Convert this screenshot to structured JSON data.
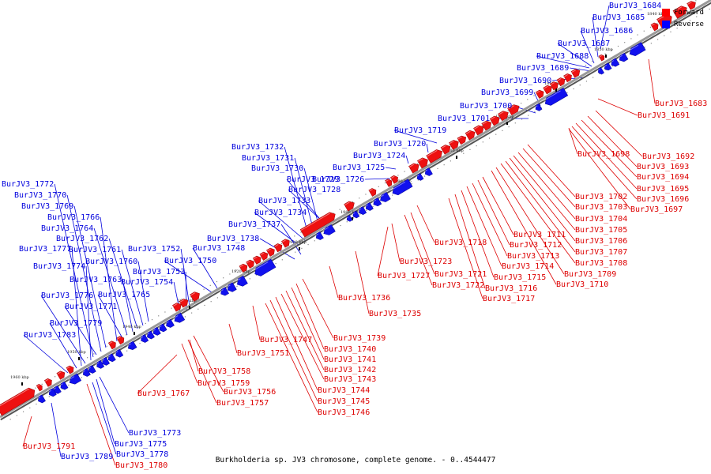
{
  "caption": "Burkholderia sp. JV3 chromosome, complete genome. - 0..4544477",
  "legend": [
    {
      "label": "Forward",
      "color": "#ff0000"
    },
    {
      "label": "Reverse",
      "color": "#0000ff"
    }
  ],
  "colors": {
    "forward": "#ee1111",
    "reverse": "#1111ee",
    "backbone": "#999999"
  },
  "chromosome": {
    "length": 4544477,
    "visible_range_kbp": [
      1835,
      1965
    ],
    "tick_labels": [
      "1840 kbp",
      "1850 kbp",
      "1860 kbp",
      "1870 kbp",
      "1880 kbp",
      "1890 kbp",
      "1900 kbp",
      "1910 kbp",
      "1920 kbp",
      "1930 kbp",
      "1940 kbp",
      "1950 kbp",
      "1960 kbp"
    ]
  },
  "genes": [
    {
      "id": "BurJV3_1683",
      "strand": "+"
    },
    {
      "id": "BurJV3_1684",
      "strand": "-"
    },
    {
      "id": "BurJV3_1685",
      "strand": "-"
    },
    {
      "id": "BurJV3_1686",
      "strand": "-"
    },
    {
      "id": "BurJV3_1687",
      "strand": "-"
    },
    {
      "id": "BurJV3_1688",
      "strand": "-"
    },
    {
      "id": "BurJV3_1689",
      "strand": "-"
    },
    {
      "id": "BurJV3_1690",
      "strand": "-"
    },
    {
      "id": "BurJV3_1691",
      "strand": "+"
    },
    {
      "id": "BurJV3_1692",
      "strand": "+"
    },
    {
      "id": "BurJV3_1693",
      "strand": "+"
    },
    {
      "id": "BurJV3_1694",
      "strand": "+"
    },
    {
      "id": "BurJV3_1695",
      "strand": "+"
    },
    {
      "id": "BurJV3_1696",
      "strand": "+"
    },
    {
      "id": "BurJV3_1697",
      "strand": "+"
    },
    {
      "id": "BurJV3_1698",
      "strand": "+"
    },
    {
      "id": "BurJV3_1699",
      "strand": "-"
    },
    {
      "id": "BurJV3_1700",
      "strand": "-"
    },
    {
      "id": "BurJV3_1701",
      "strand": "-"
    },
    {
      "id": "BurJV3_1702",
      "strand": "+"
    },
    {
      "id": "BurJV3_1703",
      "strand": "+"
    },
    {
      "id": "BurJV3_1704",
      "strand": "+"
    },
    {
      "id": "BurJV3_1705",
      "strand": "+"
    },
    {
      "id": "BurJV3_1706",
      "strand": "+"
    },
    {
      "id": "BurJV3_1707",
      "strand": "+"
    },
    {
      "id": "BurJV3_1708",
      "strand": "+"
    },
    {
      "id": "BurJV3_1709",
      "strand": "+"
    },
    {
      "id": "BurJV3_1710",
      "strand": "+"
    },
    {
      "id": "BurJV3_1711",
      "strand": "+"
    },
    {
      "id": "BurJV3_1712",
      "strand": "+"
    },
    {
      "id": "BurJV3_1713",
      "strand": "+"
    },
    {
      "id": "BurJV3_1714",
      "strand": "+"
    },
    {
      "id": "BurJV3_1715",
      "strand": "+"
    },
    {
      "id": "BurJV3_1716",
      "strand": "+"
    },
    {
      "id": "BurJV3_1717",
      "strand": "+"
    },
    {
      "id": "BurJV3_1718",
      "strand": "+"
    },
    {
      "id": "BurJV3_1719",
      "strand": "-"
    },
    {
      "id": "BurJV3_1720",
      "strand": "-"
    },
    {
      "id": "BurJV3_1721",
      "strand": "+"
    },
    {
      "id": "BurJV3_1722",
      "strand": "+"
    },
    {
      "id": "BurJV3_1723",
      "strand": "+"
    },
    {
      "id": "BurJV3_1724",
      "strand": "-"
    },
    {
      "id": "BurJV3_1725",
      "strand": "-"
    },
    {
      "id": "BurJV3_1726",
      "strand": "-"
    },
    {
      "id": "BurJV3_1727",
      "strand": "+"
    },
    {
      "id": "BurJV3_1728",
      "strand": "-"
    },
    {
      "id": "BurJV3_1729",
      "strand": "-"
    },
    {
      "id": "BurJV3_1730",
      "strand": "-"
    },
    {
      "id": "BurJV3_1731",
      "strand": "-"
    },
    {
      "id": "BurJV3_1732",
      "strand": "-"
    },
    {
      "id": "BurJV3_1733",
      "strand": "-"
    },
    {
      "id": "BurJV3_1734",
      "strand": "-"
    },
    {
      "id": "BurJV3_1735",
      "strand": "+"
    },
    {
      "id": "BurJV3_1736",
      "strand": "+"
    },
    {
      "id": "BurJV3_1737",
      "strand": "-"
    },
    {
      "id": "BurJV3_1738",
      "strand": "-"
    },
    {
      "id": "BurJV3_1739",
      "strand": "+"
    },
    {
      "id": "BurJV3_1740",
      "strand": "+"
    },
    {
      "id": "BurJV3_1741",
      "strand": "+"
    },
    {
      "id": "BurJV3_1742",
      "strand": "+"
    },
    {
      "id": "BurJV3_1743",
      "strand": "+"
    },
    {
      "id": "BurJV3_1744",
      "strand": "+"
    },
    {
      "id": "BurJV3_1745",
      "strand": "+"
    },
    {
      "id": "BurJV3_1746",
      "strand": "+"
    },
    {
      "id": "BurJV3_1747",
      "strand": "+"
    },
    {
      "id": "BurJV3_1748",
      "strand": "-"
    },
    {
      "id": "BurJV3_1750",
      "strand": "-"
    },
    {
      "id": "BurJV3_1751",
      "strand": "+"
    },
    {
      "id": "BurJV3_1752",
      "strand": "-"
    },
    {
      "id": "BurJV3_1753",
      "strand": "-"
    },
    {
      "id": "BurJV3_1754",
      "strand": "-"
    },
    {
      "id": "BurJV3_1756",
      "strand": "+"
    },
    {
      "id": "BurJV3_1757",
      "strand": "+"
    },
    {
      "id": "BurJV3_1758",
      "strand": "+"
    },
    {
      "id": "BurJV3_1759",
      "strand": "+"
    },
    {
      "id": "BurJV3_1760",
      "strand": "-"
    },
    {
      "id": "BurJV3_1761",
      "strand": "-"
    },
    {
      "id": "BurJV3_1762",
      "strand": "-"
    },
    {
      "id": "BurJV3_1763",
      "strand": "-"
    },
    {
      "id": "BurJV3_1764",
      "strand": "-"
    },
    {
      "id": "BurJV3_1765",
      "strand": "-"
    },
    {
      "id": "BurJV3_1766",
      "strand": "-"
    },
    {
      "id": "BurJV3_1767",
      "strand": "+"
    },
    {
      "id": "BurJV3_1769",
      "strand": "-"
    },
    {
      "id": "BurJV3_1770",
      "strand": "-"
    },
    {
      "id": "BurJV3_1771",
      "strand": "-"
    },
    {
      "id": "BurJV3_1772",
      "strand": "-"
    },
    {
      "id": "BurJV3_1773",
      "strand": "-"
    },
    {
      "id": "BurJV3_1774",
      "strand": "-"
    },
    {
      "id": "BurJV3_1775",
      "strand": "-"
    },
    {
      "id": "BurJV3_1776",
      "strand": "-"
    },
    {
      "id": "BurJV3_1777",
      "strand": "-"
    },
    {
      "id": "BurJV3_1778",
      "strand": "-"
    },
    {
      "id": "BurJV3_1779",
      "strand": "-"
    },
    {
      "id": "BurJV3_1780",
      "strand": "+"
    },
    {
      "id": "BurJV3_1783",
      "strand": "-"
    },
    {
      "id": "BurJV3_1789",
      "strand": "-"
    },
    {
      "id": "BurJV3_1791",
      "strand": "+"
    }
  ]
}
